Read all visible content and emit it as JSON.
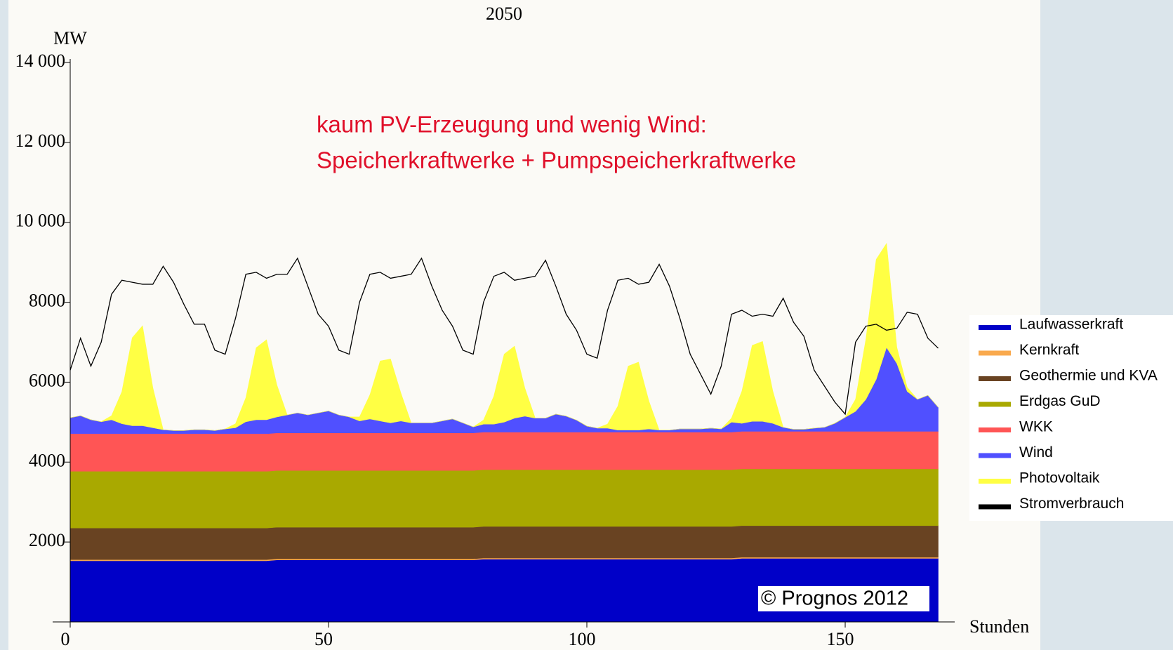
{
  "chart_data": {
    "type": "area",
    "title": "2050",
    "y_label": "MW",
    "x_label": "Stunden",
    "annotations": [
      "kaum PV-Erzeugung und wenig Wind:",
      "Speicherkraftwerke + Pumpspeicherkraftwerke"
    ],
    "source": "© Prognos 2012",
    "xlim": [
      0,
      168
    ],
    "xticks": [
      0,
      50,
      100,
      150
    ],
    "ylim": [
      0,
      14000
    ],
    "yticks": [
      {
        "value": 2000,
        "label": "2000"
      },
      {
        "value": 4000,
        "label": "4000"
      },
      {
        "value": 6000,
        "label": "6000"
      },
      {
        "value": 8000,
        "label": "8000"
      },
      {
        "value": 10000,
        "label": "10 000"
      },
      {
        "value": 12000,
        "label": "12 000"
      },
      {
        "value": 14000,
        "label": "14 000"
      }
    ],
    "x": [
      0,
      2,
      4,
      6,
      8,
      10,
      12,
      14,
      16,
      18,
      20,
      22,
      24,
      26,
      28,
      30,
      32,
      34,
      36,
      38,
      40,
      42,
      44,
      46,
      48,
      50,
      52,
      54,
      56,
      58,
      60,
      62,
      64,
      66,
      68,
      70,
      72,
      74,
      76,
      78,
      80,
      82,
      84,
      86,
      88,
      90,
      92,
      94,
      96,
      98,
      100,
      102,
      104,
      106,
      108,
      110,
      112,
      114,
      116,
      118,
      120,
      122,
      124,
      126,
      128,
      130,
      132,
      134,
      136,
      138,
      140,
      142,
      144,
      146,
      148,
      150,
      152,
      154,
      156,
      158,
      160,
      162,
      164,
      166,
      168
    ],
    "series": [
      {
        "name": "Laufwasserkraft",
        "type": "stack",
        "color": "#0000c8",
        "values": [
          1530,
          1530,
          1530,
          1530,
          1530,
          1530,
          1530,
          1530,
          1530,
          1530,
          1530,
          1530,
          1530,
          1530,
          1530,
          1530,
          1530,
          1530,
          1530,
          1530,
          1550,
          1550,
          1550,
          1550,
          1550,
          1550,
          1550,
          1550,
          1550,
          1550,
          1550,
          1550,
          1550,
          1550,
          1550,
          1550,
          1550,
          1550,
          1550,
          1550,
          1570,
          1570,
          1570,
          1570,
          1570,
          1570,
          1570,
          1570,
          1570,
          1570,
          1570,
          1570,
          1570,
          1570,
          1570,
          1570,
          1570,
          1570,
          1570,
          1570,
          1570,
          1570,
          1570,
          1570,
          1570,
          1590,
          1590,
          1590,
          1590,
          1590,
          1590,
          1590,
          1590,
          1590,
          1590,
          1590,
          1590,
          1590,
          1590,
          1590,
          1590,
          1590,
          1590,
          1590,
          1590
        ]
      },
      {
        "name": "Kernkraft",
        "type": "stack",
        "color": "#f9a94d",
        "values": [
          30,
          30,
          30,
          30,
          30,
          30,
          30,
          30,
          30,
          30,
          30,
          30,
          30,
          30,
          30,
          30,
          30,
          30,
          30,
          30,
          30,
          30,
          30,
          30,
          30,
          30,
          30,
          30,
          30,
          30,
          30,
          30,
          30,
          30,
          30,
          30,
          30,
          30,
          30,
          30,
          30,
          30,
          30,
          30,
          30,
          30,
          30,
          30,
          30,
          30,
          30,
          30,
          30,
          30,
          30,
          30,
          30,
          30,
          30,
          30,
          30,
          30,
          30,
          30,
          30,
          30,
          30,
          30,
          30,
          30,
          30,
          30,
          30,
          30,
          30,
          30,
          30,
          30,
          30,
          30,
          30,
          30,
          30,
          30,
          30
        ]
      },
      {
        "name": "Geothermie und KVA",
        "type": "stack",
        "color": "#694322",
        "values": [
          790,
          790,
          790,
          790,
          790,
          790,
          790,
          790,
          790,
          790,
          790,
          790,
          790,
          790,
          790,
          790,
          790,
          790,
          790,
          790,
          790,
          790,
          790,
          790,
          790,
          790,
          790,
          790,
          790,
          790,
          790,
          790,
          790,
          790,
          790,
          790,
          790,
          790,
          790,
          790,
          790,
          790,
          790,
          790,
          790,
          790,
          790,
          790,
          790,
          790,
          790,
          790,
          790,
          790,
          790,
          790,
          790,
          790,
          790,
          790,
          790,
          790,
          790,
          790,
          790,
          790,
          790,
          790,
          790,
          790,
          790,
          790,
          790,
          790,
          790,
          790,
          790,
          790,
          790,
          790,
          790,
          790,
          790,
          790,
          790
        ]
      },
      {
        "name": "Erdgas GuD",
        "type": "stack",
        "color": "#a9a900",
        "values": [
          1420,
          1420,
          1420,
          1420,
          1420,
          1420,
          1420,
          1420,
          1420,
          1420,
          1420,
          1420,
          1420,
          1420,
          1420,
          1420,
          1420,
          1420,
          1420,
          1420,
          1420,
          1420,
          1420,
          1420,
          1420,
          1420,
          1420,
          1420,
          1420,
          1420,
          1420,
          1420,
          1420,
          1420,
          1420,
          1420,
          1420,
          1420,
          1420,
          1420,
          1420,
          1420,
          1420,
          1420,
          1420,
          1420,
          1420,
          1420,
          1420,
          1420,
          1420,
          1420,
          1420,
          1420,
          1420,
          1420,
          1420,
          1420,
          1420,
          1420,
          1420,
          1420,
          1420,
          1420,
          1420,
          1420,
          1420,
          1420,
          1420,
          1420,
          1420,
          1420,
          1420,
          1420,
          1420,
          1420,
          1420,
          1420,
          1420,
          1420,
          1420,
          1420,
          1420,
          1420,
          1420
        ]
      },
      {
        "name": "WKK",
        "type": "stack",
        "color": "#ff5555",
        "values": [
          940,
          940,
          940,
          940,
          940,
          940,
          940,
          940,
          940,
          940,
          940,
          940,
          940,
          940,
          940,
          940,
          940,
          940,
          940,
          940,
          940,
          940,
          940,
          940,
          940,
          940,
          940,
          940,
          940,
          940,
          940,
          940,
          940,
          940,
          940,
          940,
          940,
          940,
          940,
          940,
          940,
          940,
          940,
          940,
          940,
          940,
          940,
          940,
          940,
          940,
          940,
          940,
          940,
          940,
          940,
          940,
          940,
          940,
          940,
          940,
          940,
          940,
          940,
          940,
          940,
          940,
          940,
          940,
          940,
          940,
          940,
          940,
          940,
          940,
          940,
          940,
          940,
          940,
          940,
          940,
          940,
          940,
          940,
          940,
          940
        ]
      },
      {
        "name": "Wind",
        "type": "stack",
        "color": "#5050ff",
        "values": [
          400,
          450,
          350,
          300,
          350,
          250,
          200,
          200,
          150,
          100,
          80,
          80,
          100,
          100,
          80,
          120,
          150,
          300,
          350,
          350,
          400,
          450,
          500,
          450,
          500,
          550,
          450,
          400,
          300,
          350,
          300,
          250,
          300,
          250,
          250,
          250,
          300,
          350,
          250,
          150,
          200,
          200,
          250,
          350,
          400,
          350,
          350,
          450,
          400,
          300,
          150,
          100,
          100,
          50,
          50,
          50,
          80,
          50,
          50,
          80,
          80,
          80,
          100,
          80,
          250,
          200,
          250,
          250,
          200,
          100,
          50,
          50,
          80,
          100,
          200,
          350,
          500,
          800,
          1300,
          2100,
          1700,
          1000,
          800,
          900,
          600
        ]
      },
      {
        "name": "Photovoltaik",
        "type": "stack",
        "color": "#ffff44",
        "values": [
          0,
          0,
          0,
          0,
          100,
          800,
          2200,
          2500,
          1000,
          0,
          0,
          0,
          0,
          0,
          0,
          0,
          100,
          600,
          1800,
          2000,
          800,
          0,
          0,
          0,
          0,
          0,
          0,
          0,
          100,
          600,
          1500,
          1600,
          700,
          0,
          0,
          0,
          0,
          0,
          0,
          0,
          100,
          700,
          1700,
          1800,
          700,
          0,
          0,
          0,
          0,
          0,
          0,
          0,
          100,
          600,
          1600,
          1700,
          700,
          0,
          0,
          0,
          0,
          0,
          0,
          0,
          100,
          800,
          1900,
          2000,
          800,
          0,
          0,
          0,
          0,
          0,
          0,
          0,
          300,
          1500,
          3000,
          2600,
          400,
          100,
          0,
          0,
          0
        ]
      },
      {
        "name": "Stromverbrauch",
        "type": "line",
        "color": "#000000",
        "values": [
          6300,
          7100,
          6400,
          7000,
          8200,
          8550,
          8500,
          8450,
          8450,
          8900,
          8500,
          7950,
          7450,
          7450,
          6800,
          6700,
          7600,
          8700,
          8750,
          8600,
          8700,
          8700,
          9100,
          8400,
          7700,
          7400,
          6800,
          6700,
          8000,
          8700,
          8750,
          8600,
          8650,
          8700,
          9100,
          8400,
          7800,
          7400,
          6800,
          6700,
          8000,
          8650,
          8750,
          8550,
          8600,
          8650,
          9050,
          8400,
          7700,
          7300,
          6700,
          6600,
          7800,
          8550,
          8600,
          8450,
          8500,
          8950,
          8400,
          7600,
          6700,
          6200,
          5700,
          6400,
          7700,
          7800,
          7650,
          7700,
          7650,
          8100,
          7500,
          7150,
          6300,
          5900,
          5500,
          5200,
          7000,
          7400,
          7450,
          7300,
          7350,
          7750,
          7700,
          7100,
          6850
        ]
      }
    ]
  }
}
